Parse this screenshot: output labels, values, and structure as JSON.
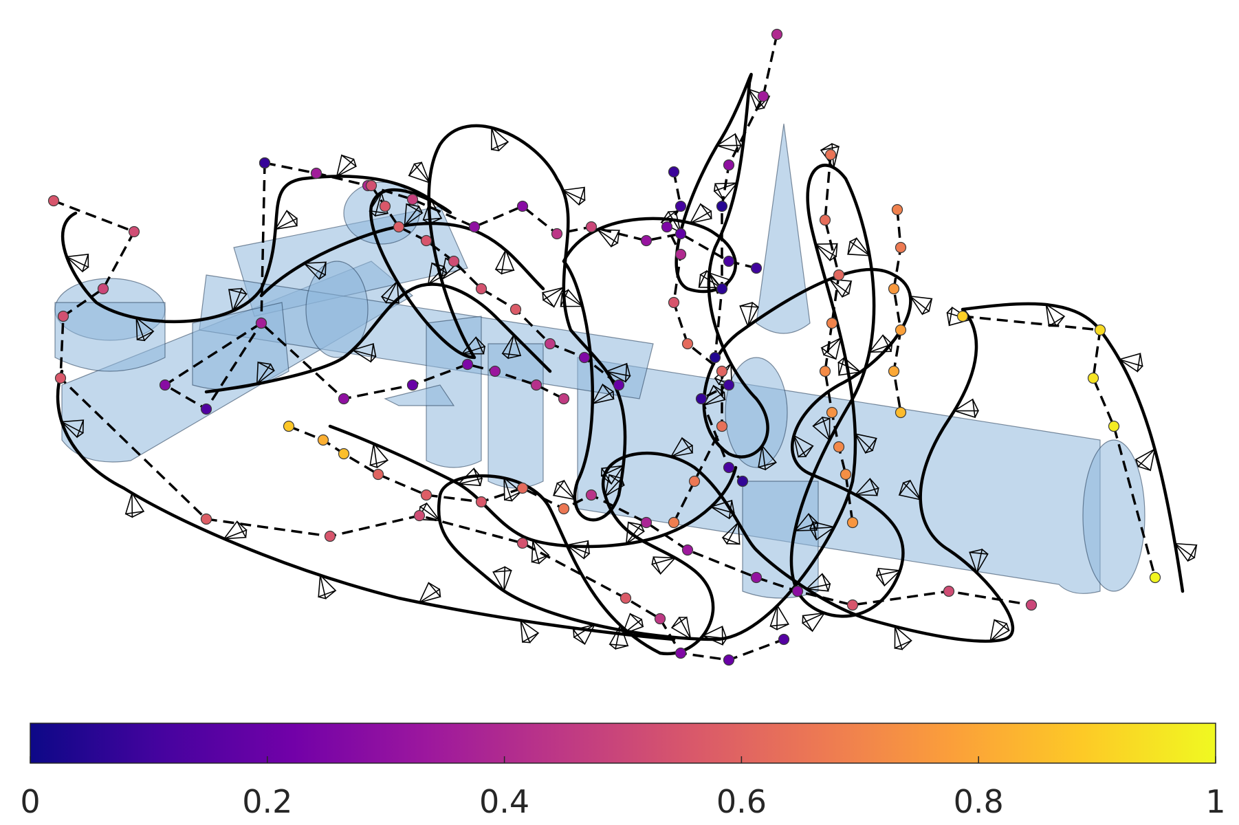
{
  "chart_data": {
    "type": "scatter",
    "subtype": "3d-trajectory-with-colorbar",
    "title": "",
    "xlabel": "",
    "ylabel": "",
    "colormap": "plasma",
    "colormap_stops": [
      "#0d0887",
      "#46039f",
      "#7201a8",
      "#9c179e",
      "#bd3786",
      "#d8576b",
      "#ed7953",
      "#fb9f3a",
      "#fdca26",
      "#f0f921"
    ],
    "colorbar": {
      "orientation": "horizontal",
      "range": [
        0,
        1
      ],
      "ticks": [
        0,
        0.2,
        0.4,
        0.6,
        0.8,
        1
      ],
      "tick_labels": [
        "0",
        "0.2",
        "0.4",
        "0.6",
        "0.8",
        "1"
      ]
    },
    "grid": false,
    "legend": "none",
    "elements": {
      "obstacles": "translucent light-blue cylinders and cones",
      "trajectory": "solid black smooth curve",
      "waypoint_path": "dashed black polyline through colored waypoints",
      "camera_frusta": "small black wireframe pyramids along the trajectory",
      "waypoints": "circles colored by normalized time (0 to 1)"
    },
    "waypoint_color_values": [
      0.55,
      0.52,
      0.5,
      0.53,
      0.56,
      0.58,
      0.55,
      0.52,
      0.54,
      0.57,
      0.45,
      0.26,
      0.2,
      0.15,
      0.22,
      0.35,
      0.4,
      0.48,
      0.3,
      0.28,
      0.44,
      0.5,
      0.32,
      0.18,
      0.12,
      0.1,
      0.08,
      0.12,
      0.14,
      0.28,
      0.36,
      0.3,
      0.2,
      0.25,
      0.33,
      0.42,
      0.46,
      0.4,
      0.35,
      0.3,
      0.05,
      0.06,
      0.04,
      0.1,
      0.08,
      0.12,
      0.07,
      0.09,
      0.11,
      0.25,
      0.4,
      0.55,
      0.62,
      0.6,
      0.64,
      0.66,
      0.68,
      0.65,
      0.63,
      0.61,
      0.7,
      0.72,
      0.74,
      0.71,
      0.73,
      0.75,
      0.69,
      0.67,
      0.76,
      0.78,
      0.8,
      0.85,
      0.9,
      0.93,
      0.95,
      0.97,
      0.99,
      0.88,
      0.82,
      0.86,
      0.6,
      0.58,
      0.56,
      0.62,
      0.66,
      0.43,
      0.38,
      0.34,
      0.31,
      0.29
    ]
  }
}
